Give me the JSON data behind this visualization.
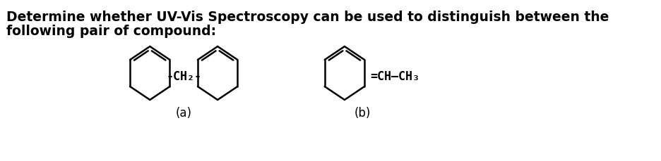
{
  "title_line1": "Determine whether UV-Vis Spectroscopy can be used to distinguish between the",
  "title_line2": "following pair of compound:",
  "label_a": "(a)",
  "label_b": "(b)",
  "text_ch2": "-CH₂-",
  "text_ch_ch3": "=CH–CH₃",
  "bg_color": "#ffffff",
  "line_color": "#000000",
  "text_color": "#000000",
  "title_fontsize": 13.5,
  "label_fontsize": 12,
  "chem_fontsize": 12
}
